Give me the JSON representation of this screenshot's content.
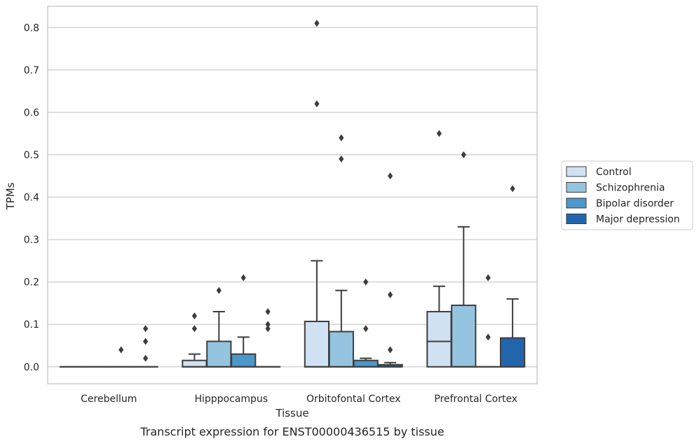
{
  "chart_data": {
    "type": "box",
    "xlabel": "Tissue",
    "ylabel": "TPMs",
    "caption": "Transcript expression for ENST00000436515 by tissue",
    "ylim": [
      -0.04,
      0.85
    ],
    "yticks": [
      0.0,
      0.1,
      0.2,
      0.3,
      0.4,
      0.5,
      0.6,
      0.7,
      0.8
    ],
    "ytick_labels": [
      "0.0",
      "0.1",
      "0.2",
      "0.3",
      "0.4",
      "0.5",
      "0.6",
      "0.7",
      "0.8"
    ],
    "grid": true,
    "legend_position": "right",
    "categories": [
      "Cerebellum",
      "Hipppocampus",
      "Orbitofontal Cortex",
      "Prefrontal Cortex"
    ],
    "series": [
      {
        "name": "Control",
        "color": "#d0e1f2"
      },
      {
        "name": "Schizophrenia",
        "color": "#94c4df"
      },
      {
        "name": "Bipolar disorder",
        "color": "#4a98c9"
      },
      {
        "name": "Major depression",
        "color": "#2166ac"
      }
    ],
    "boxes": [
      [
        {
          "q1": 0,
          "median": 0,
          "q3": 0,
          "whisker_low": 0,
          "whisker_high": 0,
          "outliers": []
        },
        {
          "q1": 0,
          "median": 0,
          "q3": 0,
          "whisker_low": 0,
          "whisker_high": 0,
          "outliers": []
        },
        {
          "q1": 0,
          "median": 0,
          "q3": 0,
          "whisker_low": 0,
          "whisker_high": 0,
          "outliers": [
            0.04
          ]
        },
        {
          "q1": 0,
          "median": 0,
          "q3": 0,
          "whisker_low": 0,
          "whisker_high": 0,
          "outliers": [
            0.09,
            0.06,
            0.02
          ]
        }
      ],
      [
        {
          "q1": 0,
          "median": 0,
          "q3": 0.015,
          "whisker_low": 0,
          "whisker_high": 0.03,
          "outliers": [
            0.12,
            0.09
          ]
        },
        {
          "q1": 0,
          "median": 0,
          "q3": 0.06,
          "whisker_low": 0,
          "whisker_high": 0.13,
          "outliers": [
            0.18
          ]
        },
        {
          "q1": 0,
          "median": 0,
          "q3": 0.03,
          "whisker_low": 0,
          "whisker_high": 0.07,
          "outliers": [
            0.21
          ]
        },
        {
          "q1": 0,
          "median": 0,
          "q3": 0,
          "whisker_low": 0,
          "whisker_high": 0,
          "outliers": [
            0.13,
            0.1,
            0.09
          ]
        }
      ],
      [
        {
          "q1": 0,
          "median": 0,
          "q3": 0.107,
          "whisker_low": 0,
          "whisker_high": 0.25,
          "outliers": [
            0.81,
            0.62
          ]
        },
        {
          "q1": 0,
          "median": 0,
          "q3": 0.083,
          "whisker_low": 0,
          "whisker_high": 0.18,
          "outliers": [
            0.54,
            0.49
          ]
        },
        {
          "q1": 0,
          "median": 0,
          "q3": 0.015,
          "whisker_low": 0,
          "whisker_high": 0.02,
          "outliers": [
            0.2,
            0.09
          ]
        },
        {
          "q1": 0,
          "median": 0,
          "q3": 0.005,
          "whisker_low": 0,
          "whisker_high": 0.01,
          "outliers": [
            0.45,
            0.17,
            0.04
          ]
        }
      ],
      [
        {
          "q1": 0,
          "median": 0.06,
          "q3": 0.13,
          "whisker_low": 0,
          "whisker_high": 0.19,
          "outliers": [
            0.55
          ]
        },
        {
          "q1": 0,
          "median": 0,
          "q3": 0.145,
          "whisker_low": 0,
          "whisker_high": 0.33,
          "outliers": [
            0.5
          ]
        },
        {
          "q1": 0,
          "median": 0,
          "q3": 0,
          "whisker_low": 0,
          "whisker_high": 0,
          "outliers": [
            0.21,
            0.07
          ]
        },
        {
          "q1": 0,
          "median": 0,
          "q3": 0.068,
          "whisker_low": 0,
          "whisker_high": 0.16,
          "outliers": [
            0.42
          ]
        }
      ]
    ]
  }
}
